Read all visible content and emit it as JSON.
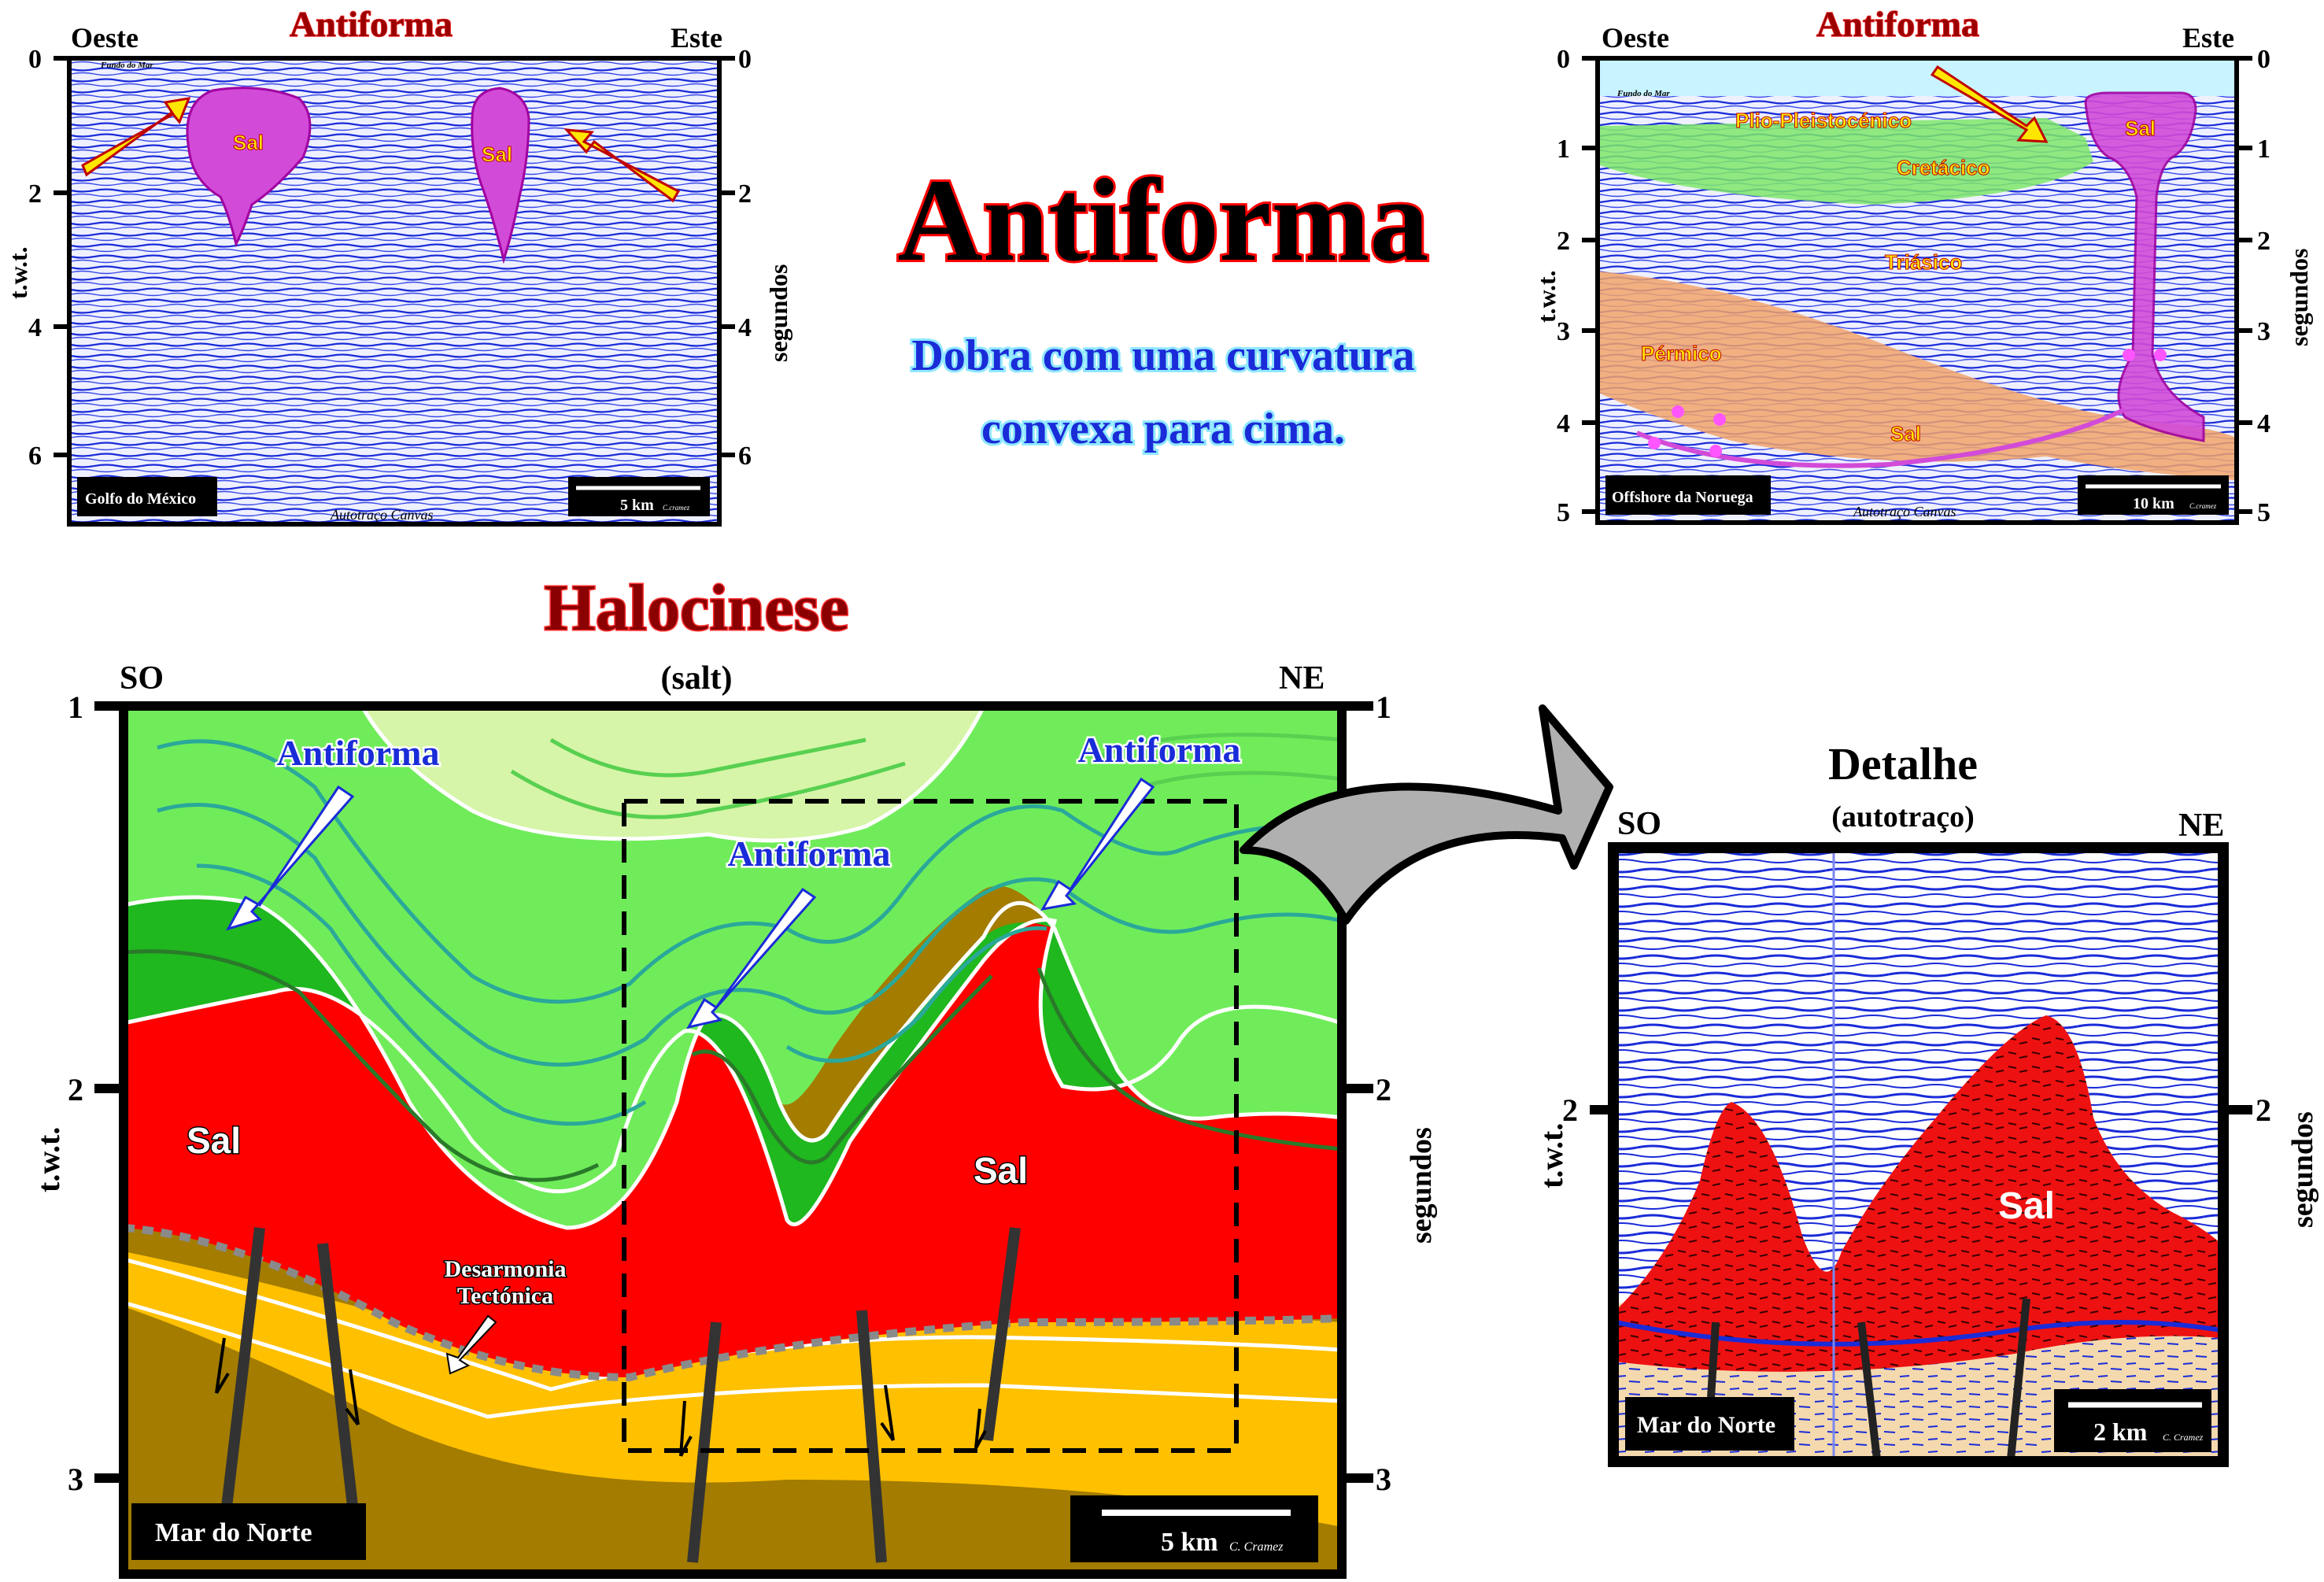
{
  "main_title": "Antiforma",
  "definition_line1": "Dobra com uma curvatura",
  "definition_line2": "convexa para cima.",
  "panel_gulf": {
    "title": "Antiforma",
    "west": "Oeste",
    "east": "Este",
    "seabed": "Fundo do Mar",
    "salt_left": "Sal",
    "salt_right": "Sal",
    "location": "Golfo do México",
    "scale": "5 km",
    "credit_small": "C.cramez",
    "footer": "Autotraço Canvas",
    "ticks_left": [
      "0",
      "2",
      "4",
      "6"
    ],
    "ticks_right": [
      "0",
      "2",
      "4",
      "6"
    ],
    "axis_left": "t.w.t.",
    "axis_right": "segundos"
  },
  "panel_norway": {
    "title": "Antiforma",
    "west": "Oeste",
    "east": "Este",
    "seabed": "Fundo do Mar",
    "units": [
      "Plio-Pleistocénico",
      "Cretácico",
      "Triásico",
      "Pérmico"
    ],
    "salt_top": "Sal",
    "salt_bottom": "Sal",
    "location": "Offshore da Noruega",
    "scale": "10 km",
    "credit_small": "C.cramez",
    "footer": "Autotraço Canvas",
    "ticks_left": [
      "0",
      "1",
      "2",
      "3",
      "4",
      "5"
    ],
    "ticks_right": [
      "0",
      "1",
      "2",
      "3",
      "4",
      "5"
    ],
    "axis_left": "t.w.t.",
    "axis_right": "segundos"
  },
  "halokinesis": {
    "title": "Halocinese",
    "subtitle": "(salt)",
    "sw": "SO",
    "ne": "NE",
    "antiform_labels": [
      "Antiforma",
      "Antiforma",
      "Antiforma"
    ],
    "salt_left": "Sal",
    "salt_right": "Sal",
    "disharmony_line1": "Desarmonia",
    "disharmony_line2": "Tectónica",
    "location": "Mar do Norte",
    "scale": "5 km",
    "credit": "C. Cramez",
    "ticks_left": [
      "1",
      "2",
      "3"
    ],
    "ticks_right": [
      "1",
      "2",
      "3"
    ],
    "axis_left": "t.w.t.",
    "axis_right": "segundos"
  },
  "detail": {
    "title": "Detalhe",
    "subtitle": "(autotraço)",
    "sw": "SO",
    "ne": "NE",
    "salt": "Sal",
    "location": "Mar do Norte",
    "scale": "2 km",
    "credit": "C. Cramez",
    "tick_left": "2",
    "tick_right": "2",
    "axis_left": "t.w.t.",
    "axis_right": "segundos"
  },
  "colors": {
    "salt_red": "#ff0000",
    "salt_magenta": "#d24bd8",
    "seismic_blue": "#1a2bd8",
    "green_light": "#d6f5a8",
    "green_mid": "#70ec5a",
    "green_dark": "#1fb81f",
    "yellow": "#ffc000",
    "brown": "#a37c00"
  }
}
